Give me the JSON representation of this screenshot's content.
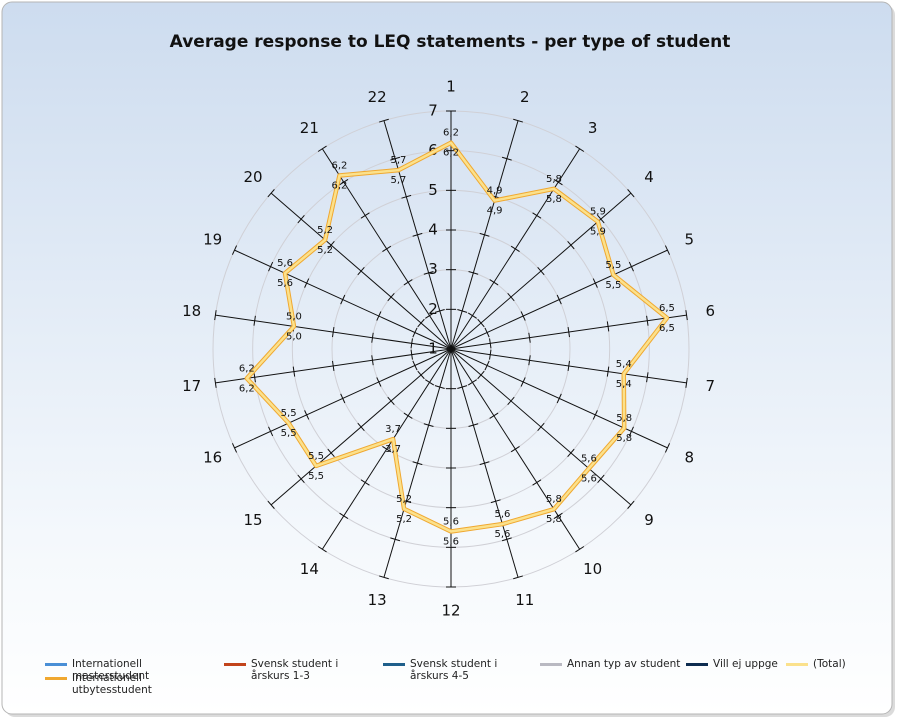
{
  "chart_data": {
    "type": "radar",
    "title": "Average response to LEQ statements - per type of student",
    "categories": [
      "1",
      "2",
      "3",
      "4",
      "5",
      "6",
      "7",
      "8",
      "9",
      "10",
      "11",
      "12",
      "13",
      "14",
      "15",
      "16",
      "17",
      "18",
      "19",
      "20",
      "21",
      "22"
    ],
    "ylim": [
      1,
      7
    ],
    "yticks": [
      1,
      2,
      3,
      4,
      5,
      6,
      7
    ],
    "grid": true,
    "legend": "bottom",
    "series": [
      {
        "name": "Internationell masterstudent",
        "color": "#4a8fd6",
        "values": [
          null,
          null,
          null,
          null,
          null,
          null,
          null,
          null,
          null,
          null,
          null,
          null,
          null,
          null,
          null,
          null,
          null,
          null,
          null,
          null,
          null,
          null
        ]
      },
      {
        "name": "Internationell utbytesstudent",
        "color": "#f0a830",
        "values": [
          6.2,
          4.9,
          5.8,
          5.9,
          5.5,
          6.5,
          5.4,
          5.8,
          5.6,
          5.8,
          5.6,
          5.6,
          5.2,
          3.7,
          5.5,
          5.5,
          6.2,
          5.0,
          5.6,
          5.2,
          6.2,
          5.7
        ],
        "value_labels": [
          "6,2",
          "4,9",
          "5,8",
          "5,9",
          "5,5",
          "6,5",
          "5,4",
          "5,8",
          "5,6",
          "5,8",
          "5,6",
          "5,6",
          "5,2",
          "3,7",
          "5,5",
          "5,5",
          "6,2",
          "5,0",
          "5,6",
          "5,2",
          "6,2",
          "5,7"
        ]
      },
      {
        "name": "Svensk student i årskurs 1-3",
        "color": "#c2441c",
        "values": [
          null,
          null,
          null,
          null,
          null,
          null,
          null,
          null,
          null,
          null,
          null,
          null,
          null,
          null,
          null,
          null,
          null,
          null,
          null,
          null,
          null,
          null
        ]
      },
      {
        "name": "Svensk student i årskurs 4-5",
        "color": "#1f5f8b",
        "values": [
          null,
          null,
          null,
          null,
          null,
          null,
          null,
          null,
          null,
          null,
          null,
          null,
          null,
          null,
          null,
          null,
          null,
          null,
          null,
          null,
          null,
          null
        ]
      },
      {
        "name": "Annan typ av student",
        "color": "#b9b9c2",
        "values": [
          null,
          null,
          null,
          null,
          null,
          null,
          null,
          null,
          null,
          null,
          null,
          null,
          null,
          null,
          null,
          null,
          null,
          null,
          null,
          null,
          null,
          null
        ]
      },
      {
        "name": "Vill ej uppge",
        "color": "#0e2c50",
        "values": [
          null,
          null,
          null,
          null,
          null,
          null,
          null,
          null,
          null,
          null,
          null,
          null,
          null,
          null,
          null,
          null,
          null,
          null,
          null,
          null,
          null,
          null
        ]
      },
      {
        "name": "(Total)",
        "color": "#fbe18c",
        "values": [
          6.2,
          4.9,
          5.8,
          5.9,
          5.5,
          6.5,
          5.4,
          5.8,
          5.6,
          5.8,
          5.6,
          5.6,
          5.2,
          3.7,
          5.5,
          5.5,
          6.2,
          5.0,
          5.6,
          5.2,
          6.2,
          5.7
        ],
        "value_labels": [
          "6,2",
          "4,9",
          "5,8",
          "5,9",
          "5,5",
          "6,5",
          "5,4",
          "5,8",
          "5,6",
          "5,8",
          "5,6",
          "5,6",
          "5,2",
          "3,7",
          "5,5",
          "5,5",
          "6,2",
          "5,0",
          "5,6",
          "5,2",
          "6,2",
          "5,7"
        ]
      }
    ]
  }
}
